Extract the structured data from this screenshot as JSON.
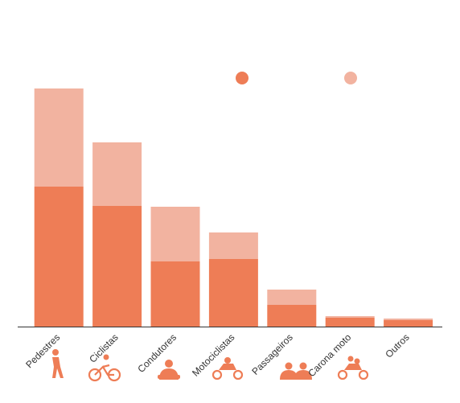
{
  "chart_data": {
    "type": "stacked-bar",
    "categories": [
      "Pedestres",
      "Ciclistas",
      "Condutores",
      "Motociclistas",
      "Passageiros",
      "Carona moto",
      "Outros"
    ],
    "series": [
      {
        "color": "#ee7d56",
        "values": [
          174,
          150,
          81,
          84,
          27,
          11,
          8
        ]
      },
      {
        "color": "#f2b3a0",
        "values": [
          122,
          79,
          68,
          33,
          19,
          2,
          2
        ]
      }
    ],
    "ylim": [
      0,
      300
    ]
  }
}
